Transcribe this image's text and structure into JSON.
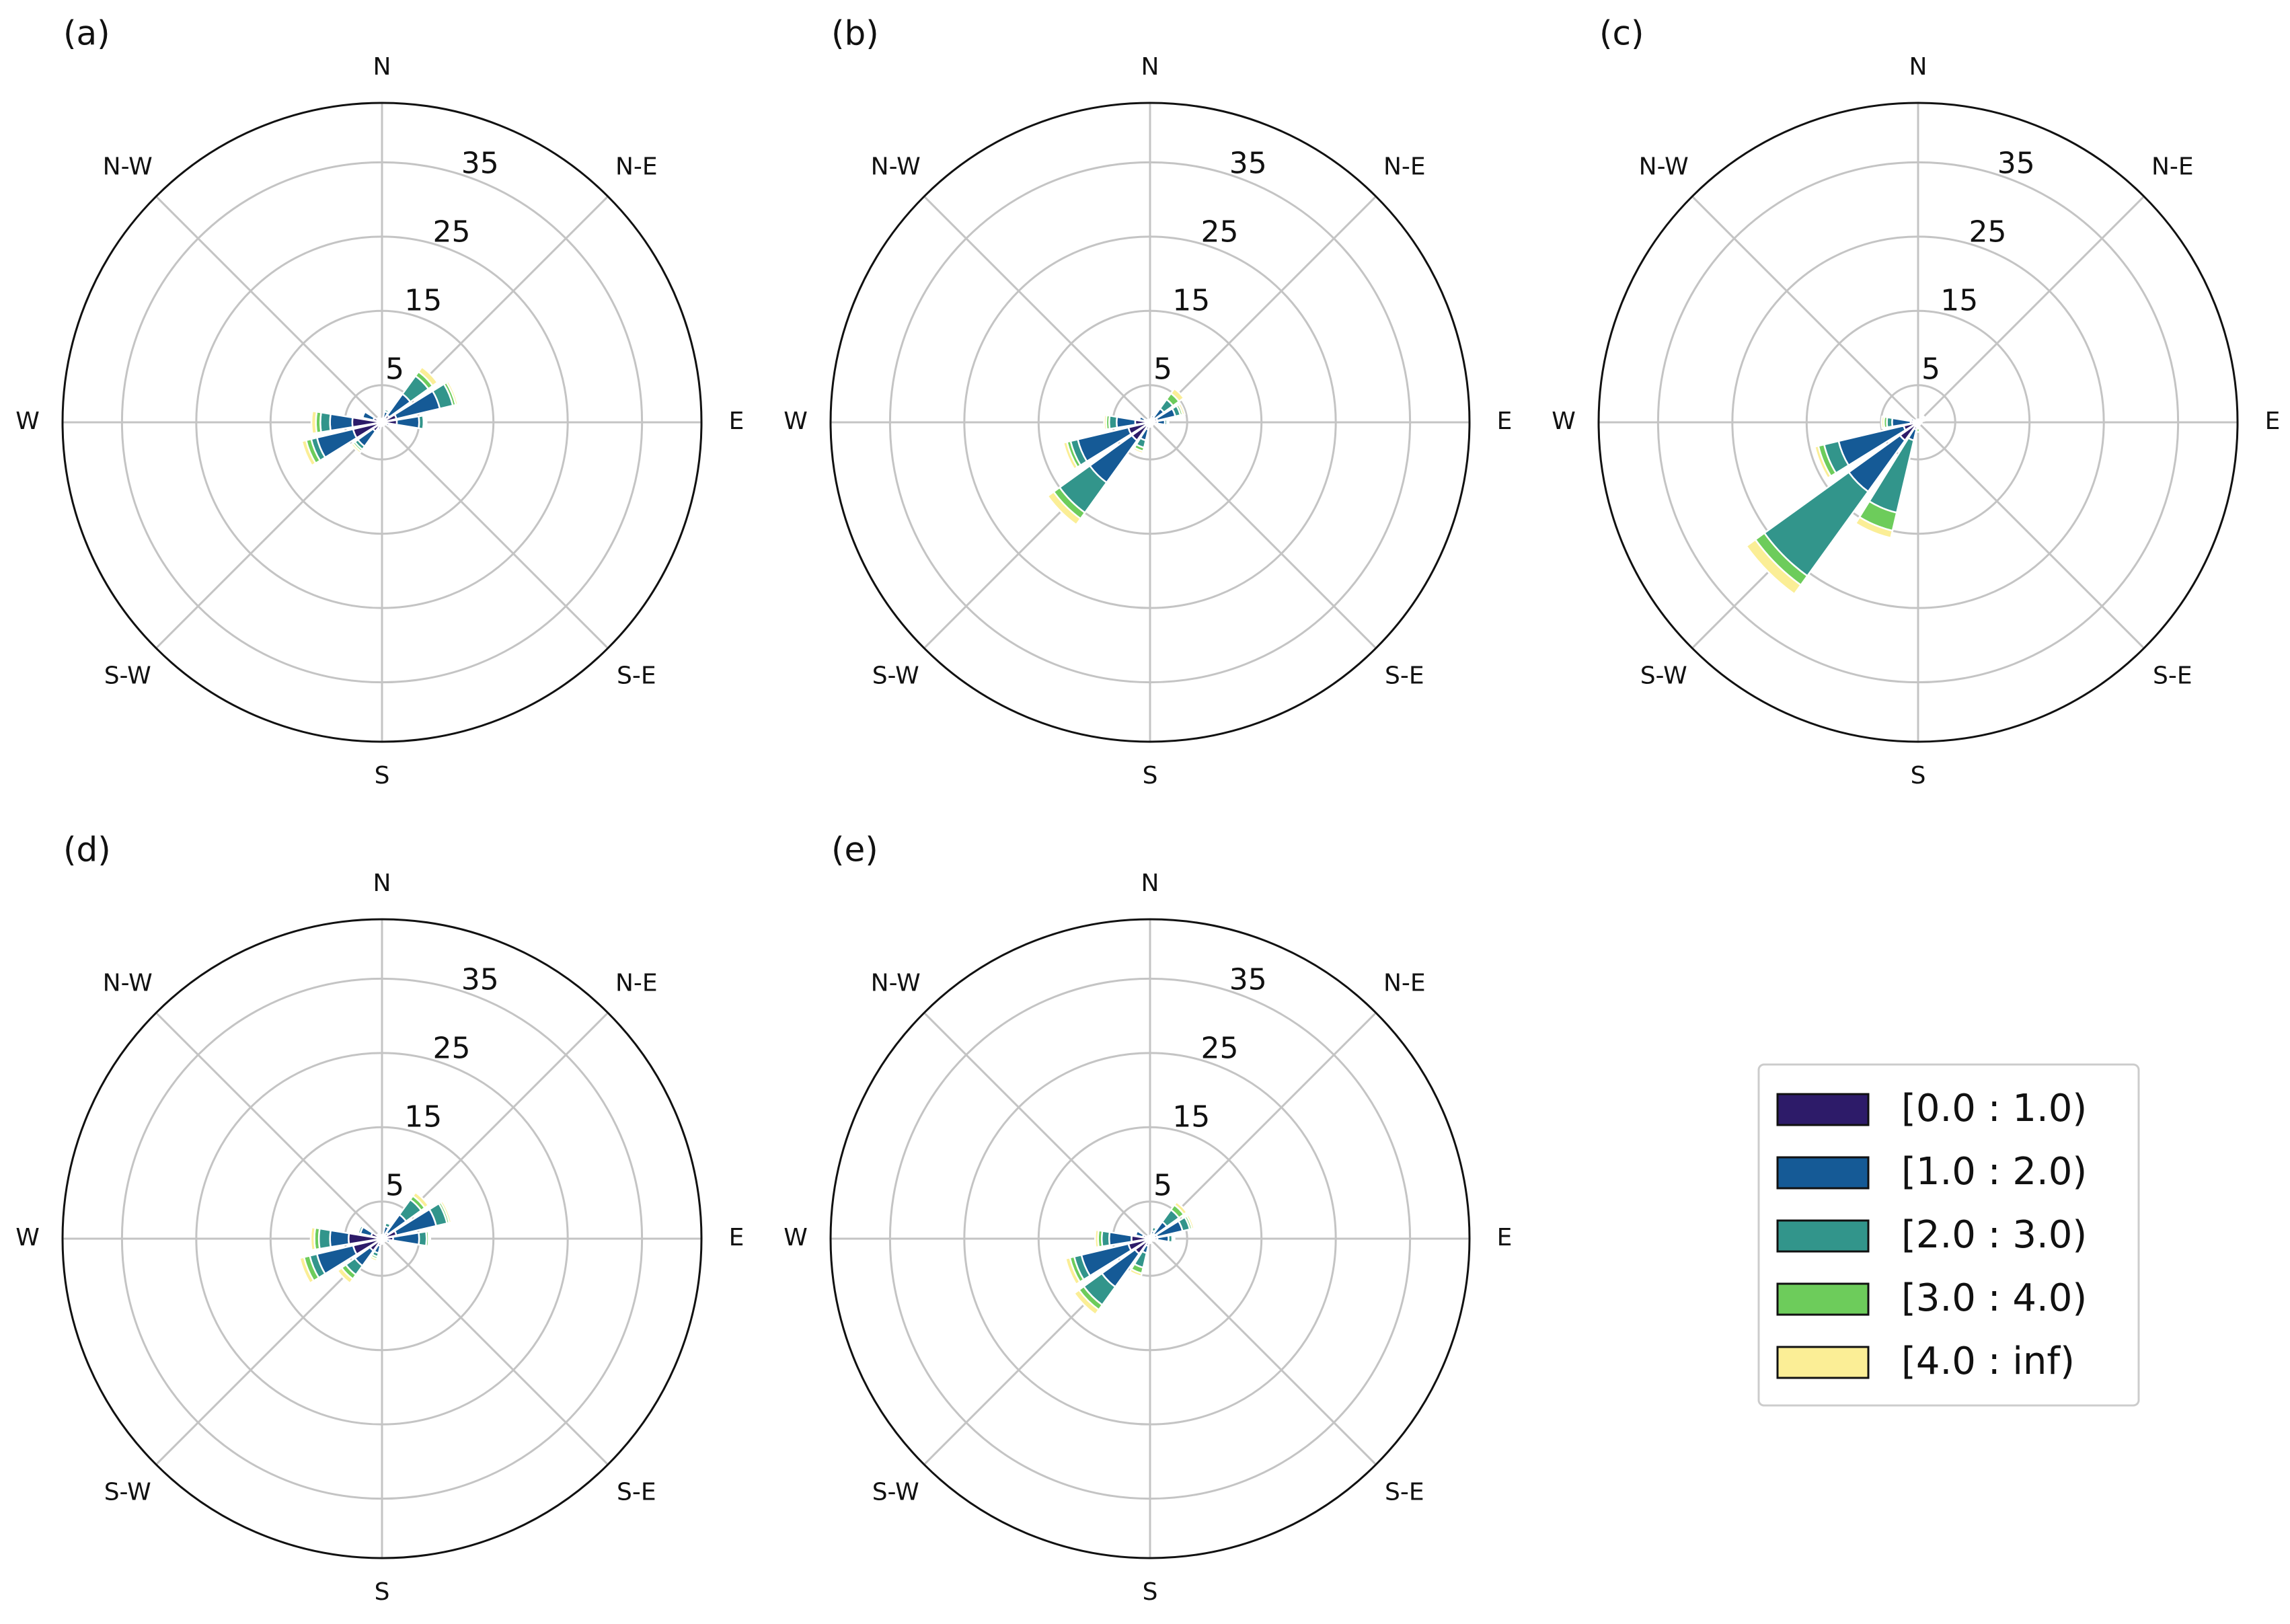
{
  "chart_data": {
    "type": "windrose",
    "direction_labels": [
      "N",
      "N-E",
      "E",
      "S-E",
      "S",
      "S-W",
      "W",
      "N-W"
    ],
    "ring_ticks": [
      "5",
      "15",
      "25",
      "35"
    ],
    "ring_values": [
      5,
      15,
      25,
      35
    ],
    "r_max": 43,
    "sector_count": 16,
    "sector_angles_deg": [
      0,
      22.5,
      45,
      67.5,
      90,
      112.5,
      135,
      157.5,
      180,
      202.5,
      225,
      247.5,
      270,
      292.5,
      315,
      337.5
    ],
    "legend": {
      "placement": "lower-right",
      "entries": [
        {
          "label": "[0.0 : 1.0)",
          "color": "#2d1b69"
        },
        {
          "label": "[1.0 : 2.0)",
          "color": "#155a96"
        },
        {
          "label": "[2.0 : 3.0)",
          "color": "#32958b"
        },
        {
          "label": "[3.0 : 4.0)",
          "color": "#6dcc5b"
        },
        {
          "label": "[4.0 : inf)",
          "color": "#fbee96"
        }
      ]
    },
    "panels": [
      {
        "label": "(a)",
        "sectors": [
          [
            0.3,
            0.2,
            0,
            0,
            0
          ],
          [
            0.5,
            1.0,
            0.3,
            0,
            0
          ],
          [
            1.2,
            3.5,
            3.0,
            0.7,
            0.8
          ],
          [
            2.0,
            6.0,
            1.8,
            0.4,
            0.3
          ],
          [
            2.0,
            3.0,
            0.6,
            0.2,
            0.2
          ],
          [
            0.5,
            0.5,
            0.1,
            0,
            0
          ],
          [
            0.3,
            0.2,
            0,
            0,
            0
          ],
          [
            0.3,
            0,
            0,
            0,
            0
          ],
          [
            0.3,
            0.2,
            0,
            0,
            0
          ],
          [
            0.5,
            0.5,
            0.2,
            0,
            0
          ],
          [
            1.5,
            2.5,
            0.5,
            0.3,
            0.3
          ],
          [
            4.0,
            5.0,
            0.8,
            0.7,
            0.6
          ],
          [
            4.0,
            3.0,
            1.3,
            0.6,
            0.6
          ],
          [
            1.2,
            1.5,
            0.2,
            0.1,
            0
          ],
          [
            0.5,
            0.3,
            0,
            0,
            0
          ],
          [
            0.3,
            0.2,
            0,
            0,
            0
          ]
        ]
      },
      {
        "label": "(b)",
        "sectors": [
          [
            0.2,
            0.2,
            0,
            0,
            0
          ],
          [
            0.3,
            0.7,
            0.2,
            0,
            0
          ],
          [
            0.8,
            1.5,
            1.5,
            1.0,
            0.8
          ],
          [
            1.0,
            2.5,
            0.7,
            0.3,
            0.3
          ],
          [
            1.0,
            1.0,
            0.3,
            0.1,
            0.1
          ],
          [
            0.3,
            0.2,
            0,
            0,
            0
          ],
          [
            0.3,
            0.2,
            0,
            0,
            0
          ],
          [
            0.3,
            0.3,
            0,
            0,
            0
          ],
          [
            0.3,
            0.3,
            0,
            0,
            0
          ],
          [
            1.0,
            1.5,
            1.0,
            0.5,
            0.3
          ],
          [
            3.0,
            7.0,
            5.0,
            1.0,
            1.0
          ],
          [
            3.0,
            7.0,
            1.0,
            0.5,
            0.5
          ],
          [
            2.0,
            2.5,
            1.0,
            0.4,
            0.3
          ],
          [
            0.8,
            0.7,
            0.2,
            0,
            0
          ],
          [
            0.3,
            0.2,
            0,
            0,
            0
          ],
          [
            0.2,
            0.2,
            0,
            0,
            0
          ]
        ]
      },
      {
        "label": "(c)",
        "sectors": [
          [
            0.2,
            0.2,
            0,
            0,
            0
          ],
          [
            0.2,
            0.2,
            0,
            0,
            0
          ],
          [
            0.3,
            0.3,
            0.3,
            0.2,
            0
          ],
          [
            0.3,
            0.2,
            0.3,
            0.2,
            0
          ],
          [
            0.3,
            0.2,
            0,
            0,
            0
          ],
          [
            0.2,
            0.2,
            0,
            0,
            0
          ],
          [
            0.2,
            0.2,
            0,
            0,
            0
          ],
          [
            0.2,
            0.2,
            0,
            0,
            0
          ],
          [
            0.2,
            0.3,
            0.3,
            0.5,
            0
          ],
          [
            1.0,
            1.5,
            10.0,
            2.5,
            1.0
          ],
          [
            3.0,
            8.5,
            14.0,
            1.5,
            1.5
          ],
          [
            2.0,
            9.0,
            2.0,
            0.8,
            0.5
          ],
          [
            1.0,
            2.5,
            0.7,
            0.4,
            0.3
          ],
          [
            0.5,
            0.5,
            0.2,
            0,
            0
          ],
          [
            0.2,
            0.2,
            0,
            0,
            0
          ],
          [
            0.2,
            0.2,
            0,
            0,
            0
          ]
        ]
      },
      {
        "label": "(d)",
        "sectors": [
          [
            0.3,
            0.2,
            0,
            0,
            0
          ],
          [
            0.5,
            1.2,
            0.5,
            0,
            0
          ],
          [
            1.0,
            3.0,
            2.5,
            0.6,
            0.6
          ],
          [
            2.0,
            5.5,
            1.5,
            0.3,
            0.3
          ],
          [
            1.5,
            3.5,
            1.0,
            0.3,
            0.2
          ],
          [
            0.5,
            0.6,
            0.1,
            0,
            0
          ],
          [
            0.3,
            0.2,
            0,
            0,
            0
          ],
          [
            0.3,
            0.2,
            0,
            0,
            0
          ],
          [
            0.4,
            0.3,
            0,
            0,
            0
          ],
          [
            1.0,
            1.0,
            0.5,
            0.3,
            0.3
          ],
          [
            2.0,
            2.5,
            1.5,
            0.7,
            0.7
          ],
          [
            4.0,
            5.0,
            1.0,
            0.8,
            0.6
          ],
          [
            4.5,
            2.5,
            1.5,
            0.6,
            0.5
          ],
          [
            1.5,
            1.5,
            0.3,
            0.2,
            0
          ],
          [
            0.5,
            0.3,
            0,
            0,
            0
          ],
          [
            0.3,
            0.2,
            0,
            0,
            0
          ]
        ]
      },
      {
        "label": "(e)",
        "sectors": [
          [
            0.2,
            0.2,
            0,
            0,
            0
          ],
          [
            0.3,
            0.8,
            0.5,
            0,
            0
          ],
          [
            0.8,
            2.0,
            2.0,
            0.8,
            0.5
          ],
          [
            1.0,
            3.5,
            1.0,
            0.3,
            0.3
          ],
          [
            1.0,
            1.5,
            0.5,
            0.2,
            0.1
          ],
          [
            0.3,
            0.3,
            0,
            0,
            0
          ],
          [
            0.2,
            0.2,
            0,
            0,
            0
          ],
          [
            0.2,
            0.2,
            0,
            0,
            0
          ],
          [
            0.3,
            0.3,
            0,
            0,
            0
          ],
          [
            1.0,
            1.0,
            2.0,
            0.8,
            0.4
          ],
          [
            2.5,
            5.5,
            3.0,
            0.8,
            0.8
          ],
          [
            3.0,
            6.5,
            1.0,
            0.6,
            0.6
          ],
          [
            2.5,
            3.0,
            1.0,
            0.5,
            0.4
          ],
          [
            1.0,
            1.0,
            0.2,
            0,
            0
          ],
          [
            0.3,
            0.2,
            0,
            0,
            0
          ],
          [
            0.2,
            0.2,
            0,
            0,
            0
          ]
        ]
      }
    ]
  }
}
